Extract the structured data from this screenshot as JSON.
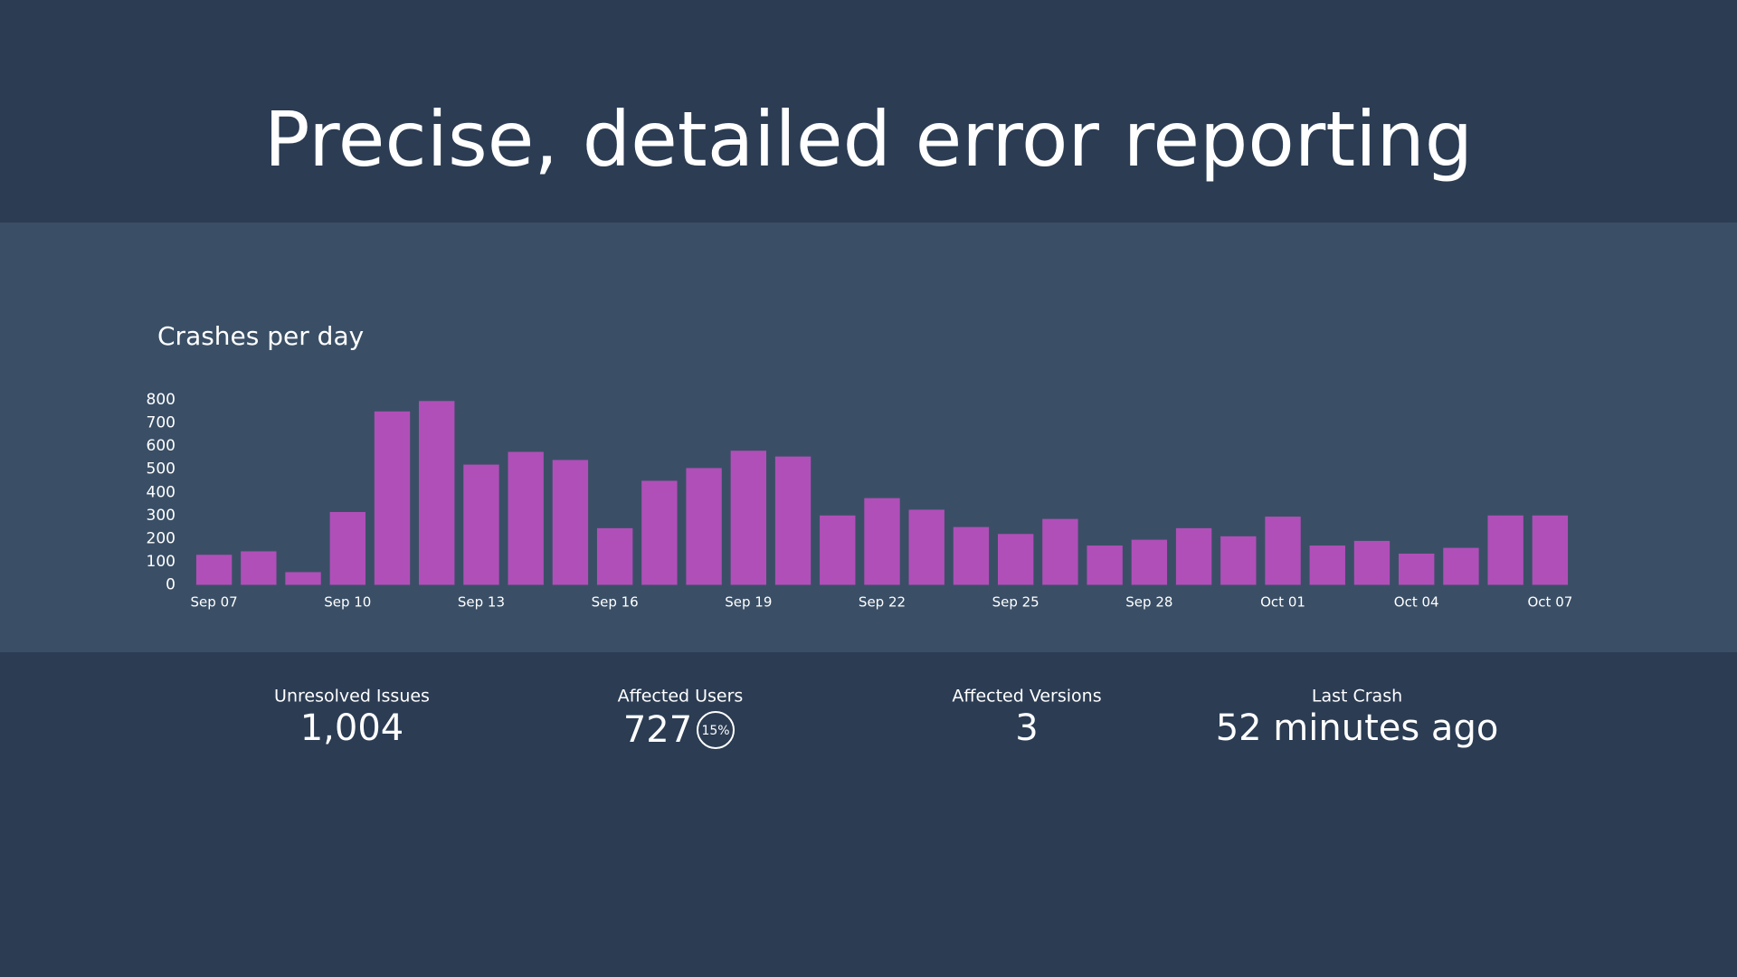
{
  "header": {
    "title": "Precise, detailed error reporting"
  },
  "chart_data": {
    "type": "bar",
    "title": "Crashes per day",
    "categories": [
      "Sep 07",
      null,
      null,
      "Sep 10",
      null,
      null,
      "Sep 13",
      null,
      null,
      "Sep 16",
      null,
      null,
      "Sep 19",
      null,
      null,
      "Sep 22",
      null,
      null,
      "Sep 25",
      null,
      null,
      "Sep 28",
      null,
      null,
      "Oct 01",
      null,
      null,
      "Oct 04",
      null,
      null,
      "Oct 07"
    ],
    "values": [
      130,
      145,
      55,
      315,
      750,
      795,
      520,
      575,
      540,
      245,
      450,
      505,
      580,
      555,
      300,
      375,
      325,
      250,
      220,
      285,
      170,
      195,
      245,
      210,
      295,
      170,
      190,
      135,
      160,
      300,
      300
    ],
    "color": "#b04fb8",
    "ylim": [
      0,
      800
    ],
    "yticks": [
      0,
      100,
      200,
      300,
      400,
      500,
      600,
      700,
      800
    ],
    "grid": false
  },
  "stats": [
    {
      "label": "Unresolved Issues",
      "value": "1,004"
    },
    {
      "label": "Affected Users",
      "value": "727",
      "badge": "15%"
    },
    {
      "label": "Affected Versions",
      "value": "3"
    },
    {
      "label": "Last Crash",
      "value": "52 minutes ago"
    }
  ]
}
